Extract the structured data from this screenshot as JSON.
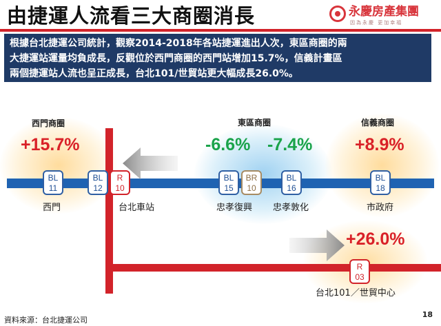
{
  "header": {
    "title": "由捷運人流看三大商圈消長",
    "logo_text": "永慶房產集團",
    "logo_slogan": "因為永慶 更加幸福"
  },
  "summary": {
    "line1": "根據台北捷運公司統計，觀察2014-2018年各站捷運進出人次，東區商圈的兩",
    "line2": "大捷運站運量均負成長，反觀位於西門商圈的西門站增加15.7%，信義計畫區",
    "line3": "兩個捷運站人流也呈正成長，台北101/世貿站更大幅成長26.0%。"
  },
  "areas": {
    "ximen": {
      "label": "西門商圈",
      "change": "+15.7%"
    },
    "east": {
      "label": "東區商圈",
      "change_a": "-6.6%",
      "change_b": "-7.4%"
    },
    "xinyi": {
      "label": "信義商圈",
      "change_a": "+8.9%",
      "change_b": "+26.0%"
    }
  },
  "stations": {
    "bl11": {
      "code": "BL",
      "num": "11",
      "name": "西門"
    },
    "bl12": {
      "code": "BL",
      "num": "12"
    },
    "r10": {
      "code": "R",
      "num": "10",
      "name": "台北車站"
    },
    "bl15": {
      "code": "BL",
      "num": "15"
    },
    "br10": {
      "code": "BR",
      "num": "10",
      "name": "忠孝復興"
    },
    "bl16": {
      "code": "BL",
      "num": "16",
      "name": "忠孝敦化"
    },
    "bl18": {
      "code": "BL",
      "num": "18",
      "name": "市政府"
    },
    "r03": {
      "code": "R",
      "num": "03",
      "name": "台北101／世貿中心"
    }
  },
  "footer": {
    "source": "資料來源：台北捷運公司",
    "page": "18"
  },
  "colors": {
    "brand_red": "#d2232a",
    "header_navy": "#1f3a66",
    "blue_line": "#1f63b2",
    "positive": "#d92128",
    "negative": "#1aa34a"
  }
}
